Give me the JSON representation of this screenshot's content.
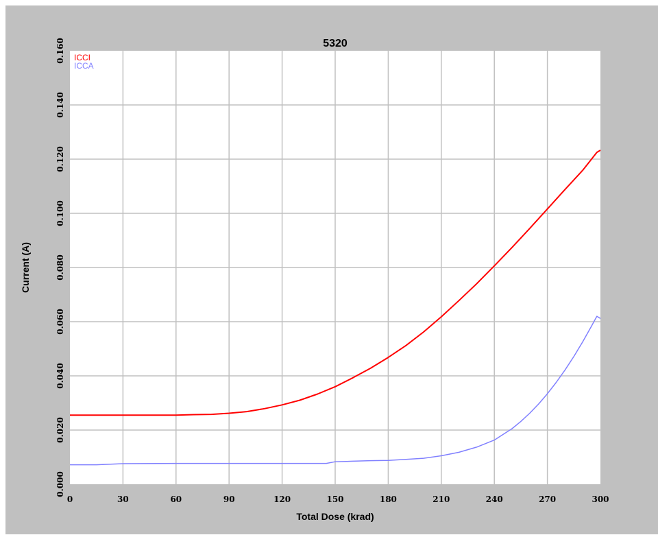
{
  "chart_data": {
    "type": "line",
    "title": "5320",
    "xlabel": "Total Dose (krad)",
    "ylabel": "Current (A)",
    "xlim": [
      0,
      300
    ],
    "ylim": [
      0,
      0.16
    ],
    "x_ticks": [
      0,
      30,
      60,
      90,
      120,
      150,
      180,
      210,
      240,
      270,
      300
    ],
    "x_tick_labels": [
      "0",
      "30",
      "60",
      "90",
      "120",
      "150",
      "180",
      "210",
      "240",
      "270",
      "300"
    ],
    "y_ticks": [
      0,
      0.02,
      0.04,
      0.06,
      0.08,
      0.1,
      0.12,
      0.14,
      0.16
    ],
    "y_tick_labels": [
      "0.000",
      "0.020",
      "0.040",
      "0.060",
      "0.080",
      "0.100",
      "0.120",
      "0.140",
      "0.160"
    ],
    "grid": true,
    "legend_position": "top-left",
    "colors": {
      "background": "#c0c0c0",
      "plot_area": "#ffffff",
      "grid": "#c0c0c0"
    },
    "series": [
      {
        "name": "ICCI",
        "color": "#ff0000",
        "x": [
          0,
          30,
          60,
          70,
          80,
          90,
          100,
          110,
          120,
          130,
          140,
          150,
          160,
          170,
          180,
          190,
          200,
          210,
          220,
          230,
          240,
          250,
          260,
          270,
          280,
          290,
          298,
          300
        ],
        "y": [
          0.0255,
          0.0255,
          0.0255,
          0.0257,
          0.0258,
          0.0262,
          0.0268,
          0.0279,
          0.0293,
          0.031,
          0.0333,
          0.036,
          0.0393,
          0.0428,
          0.0468,
          0.0512,
          0.0562,
          0.0618,
          0.0678,
          0.074,
          0.0806,
          0.0874,
          0.0944,
          0.1016,
          0.1088,
          0.1159,
          0.1225,
          0.1233
        ]
      },
      {
        "name": "ICCA",
        "color": "#8080ff",
        "x": [
          0,
          15,
          30,
          60,
          90,
          120,
          145,
          150,
          160,
          170,
          180,
          190,
          200,
          210,
          220,
          230,
          240,
          250,
          255,
          260,
          265,
          270,
          275,
          280,
          285,
          290,
          295,
          298,
          300
        ],
        "y": [
          0.0072,
          0.0072,
          0.0076,
          0.0077,
          0.0077,
          0.0077,
          0.0077,
          0.0083,
          0.0085,
          0.0087,
          0.0088,
          0.0092,
          0.0096,
          0.0105,
          0.0118,
          0.0137,
          0.0163,
          0.0205,
          0.0232,
          0.0262,
          0.0296,
          0.0334,
          0.0376,
          0.0422,
          0.0472,
          0.0526,
          0.0584,
          0.062,
          0.0612
        ]
      }
    ]
  }
}
